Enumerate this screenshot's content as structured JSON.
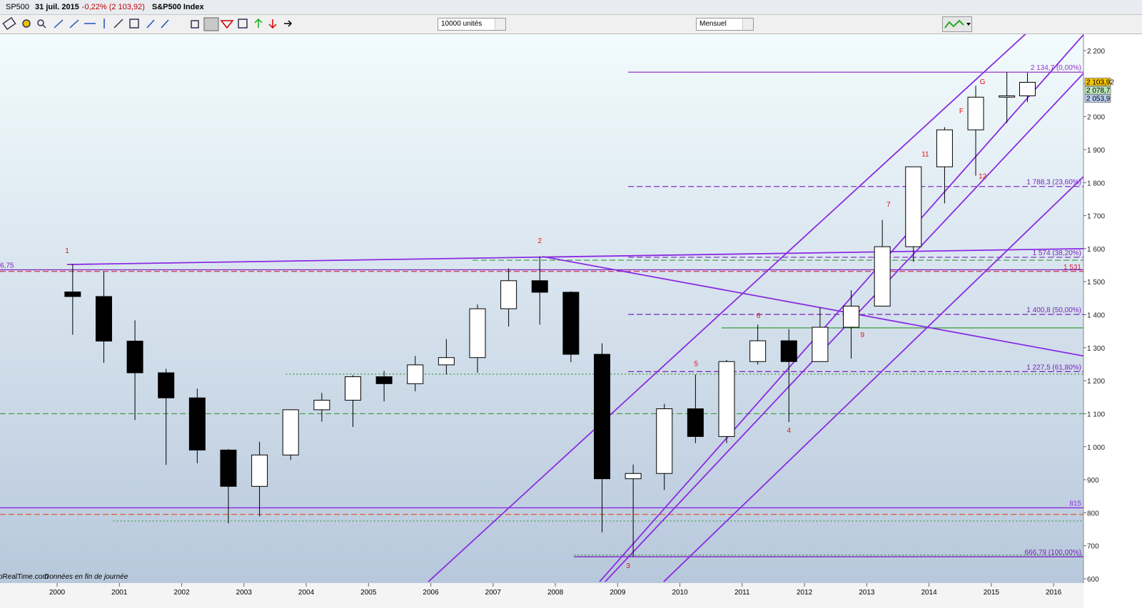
{
  "header": {
    "symbol": "SP500",
    "date": "31 juil. 2015",
    "change": "-0,22% (2 103,92)",
    "name": "S&P500 Index"
  },
  "toolbar": {
    "quantity": "10000 unités",
    "period": "Mensuel"
  },
  "footer": {
    "source": "oRealTime.com",
    "note": "Données en fin de journée"
  },
  "chart_data": {
    "type": "candlestick",
    "xlim": [
      1999.083,
      2016.48
    ],
    "xticks": [
      2000,
      2001,
      2002,
      2003,
      2004,
      2005,
      2006,
      2007,
      2008,
      2009,
      2010,
      2011,
      2012,
      2013,
      2014,
      2015,
      2016
    ],
    "ylim": [
      600,
      2200
    ],
    "yticks": [
      {
        "value": 600,
        "label": "600"
      },
      {
        "value": 700,
        "label": "700"
      },
      {
        "value": 800,
        "label": "800"
      },
      {
        "value": 900,
        "label": "900"
      },
      {
        "value": 1000,
        "label": "1 000"
      },
      {
        "value": 1100,
        "label": "1 100"
      },
      {
        "value": 1200,
        "label": "1 200"
      },
      {
        "value": 1300,
        "label": "1 300"
      },
      {
        "value": 1400,
        "label": "1 400"
      },
      {
        "value": 1500,
        "label": "1 500"
      },
      {
        "value": 1600,
        "label": "1 600"
      },
      {
        "value": 1700,
        "label": "1 700"
      },
      {
        "value": 1800,
        "label": "1 800"
      },
      {
        "value": 1900,
        "label": "1 900"
      },
      {
        "value": 2000,
        "label": "2 000"
      },
      {
        "value": 2100,
        "label": "2 100"
      },
      {
        "value": 2200,
        "label": "2 200"
      }
    ],
    "candles": {
      "x": [
        2000.25,
        2000.75,
        2001.25,
        2001.75,
        2002.25,
        2002.75,
        2003.25,
        2003.75,
        2004.25,
        2004.75,
        2005.25,
        2005.75,
        2006.25,
        2006.75,
        2007.25,
        2007.75,
        2008.25,
        2008.75,
        2009.25,
        2009.75,
        2010.25,
        2010.75,
        2011.25,
        2011.75,
        2012.25,
        2012.75,
        2013.25,
        2013.75,
        2014.25,
        2014.75,
        2015.25,
        2015.58
      ],
      "open": [
        1469,
        1455,
        1320,
        1224,
        1148,
        990,
        880,
        975,
        1112,
        1141,
        1212,
        1191,
        1248,
        1270,
        1418,
        1503,
        1468,
        1280,
        903,
        919,
        1115,
        1031,
        1258,
        1321,
        1258,
        1362,
        1426,
        1606,
        1848,
        1960,
        2059,
        2063
      ],
      "high": [
        1553,
        1530,
        1383,
        1236,
        1176,
        993,
        1015,
        1112,
        1163,
        1217,
        1230,
        1275,
        1326,
        1431,
        1540,
        1576,
        1471,
        1313,
        946,
        1130,
        1219,
        1263,
        1370,
        1356,
        1422,
        1474,
        1687,
        1849,
        1968,
        2093,
        2135,
        2133
      ],
      "low": [
        1339,
        1254,
        1081,
        945,
        950,
        768,
        789,
        960,
        1076,
        1060,
        1137,
        1168,
        1219,
        1224,
        1364,
        1370,
        1256,
        741,
        667,
        869,
        1011,
        1011,
        1249,
        1075,
        1258,
        1267,
        1426,
        1560,
        1737,
        1821,
        1981,
        2044
      ],
      "close": [
        1455,
        1320,
        1224,
        1148,
        990,
        880,
        975,
        1112,
        1141,
        1212,
        1191,
        1248,
        1270,
        1418,
        1503,
        1468,
        1280,
        903,
        919,
        1115,
        1031,
        1258,
        1321,
        1258,
        1362,
        1426,
        1606,
        1848,
        1960,
        2059,
        2063,
        2104
      ]
    },
    "levels": [
      {
        "value": 2134.7,
        "label": "2 134,7 (0,00%)",
        "color": "#9933cc",
        "style": "solid",
        "x_start": 2009.17
      },
      {
        "value": 1788.3,
        "label": "1 788,3 (23,60%)",
        "color": "#7a22bb",
        "style": "dashed",
        "x_start": 2009.17
      },
      {
        "value": 1574,
        "label": "1 574 (38,20%)",
        "color": "#7a22bb",
        "style": "dashed",
        "x_start": 2009.17
      },
      {
        "value": 1565,
        "color": "#3a9a3a",
        "style": "dashed",
        "x_start": 2006.67
      },
      {
        "value": 1531,
        "label": "1 531",
        "color": "#d02040",
        "style": "dashed",
        "x_start": 1999.083
      },
      {
        "value": 1536,
        "label": "6,75",
        "color": "#7a22bb",
        "style": "solid",
        "x_start": 1999.083
      },
      {
        "value": 1400.8,
        "label": "1 400,8 (50,00%)",
        "color": "#7a22bb",
        "style": "dashed",
        "x_start": 2009.17
      },
      {
        "value": 1360,
        "color": "#3a9a3a",
        "style": "solid",
        "x_start": 2010.67
      },
      {
        "value": 1227.5,
        "label": "1 227,5 (61,80%)",
        "color": "#7a22bb",
        "style": "dashed",
        "x_start": 2009.17
      },
      {
        "value": 1220,
        "color": "#3a9a3a",
        "style": "dotted",
        "x_start": 2003.67
      },
      {
        "value": 1100,
        "color": "#3a9a3a",
        "style": "dashed",
        "x_start": 1999.083
      },
      {
        "value": 815,
        "label": "815",
        "color": "#8a2be2",
        "style": "solid",
        "x_start": 1999.083
      },
      {
        "value": 795,
        "color": "#e05020",
        "style": "dashed",
        "x_start": 1999.083
      },
      {
        "value": 775,
        "color": "#3a9a3a",
        "style": "dotted",
        "x_start": 2000.9
      },
      {
        "value": 672,
        "color": "#3a9a3a",
        "style": "dotted",
        "x_start": 2008.3
      },
      {
        "value": 666.79,
        "label": "666,79 (100,00%)",
        "color": "#7a22bb",
        "style": "solid",
        "x_start": 2008.3
      }
    ],
    "trendlines": [
      {
        "x": [
          2000.16,
          2016.48
        ],
        "y": [
          1552,
          1600
        ]
      },
      {
        "x": [
          2007.8,
          2016.48
        ],
        "y": [
          1576,
          1275
        ]
      },
      {
        "x": [
          2005.96,
          2015.56
        ],
        "y": [
          591,
          2252
        ]
      },
      {
        "x": [
          2008.71,
          2016.48
        ],
        "y": [
          591,
          2248
        ]
      },
      {
        "x": [
          2009.74,
          2016.48
        ],
        "y": [
          591,
          1818
        ]
      },
      {
        "x": [
          2008.8,
          2016.48
        ],
        "y": [
          591,
          2131
        ]
      }
    ],
    "annotations": [
      {
        "label": "1",
        "x": 2000.16,
        "y": 1587
      },
      {
        "label": "2",
        "x": 2007.75,
        "y": 1617
      },
      {
        "label": "3",
        "x": 2009.17,
        "y": 632
      },
      {
        "label": "4",
        "x": 2011.75,
        "y": 1043
      },
      {
        "label": "5",
        "x": 2010.26,
        "y": 1244
      },
      {
        "label": "6",
        "x": 2011.26,
        "y": 1390
      },
      {
        "label": "7",
        "x": 2013.35,
        "y": 1727
      },
      {
        "label": "9",
        "x": 2012.93,
        "y": 1332
      },
      {
        "label": "11",
        "x": 2013.94,
        "y": 1879
      },
      {
        "label": "12",
        "x": 2014.86,
        "y": 1812
      },
      {
        "label": "F",
        "x": 2014.52,
        "y": 2010
      },
      {
        "label": "G",
        "x": 2014.86,
        "y": 2099
      }
    ],
    "price_tags": [
      {
        "value": 2103.92,
        "label": "2 103,92",
        "color": "#f5c400"
      },
      {
        "value": 2078.7,
        "label": "2 078,7",
        "color": "#b8e6b8"
      },
      {
        "value": 2053.9,
        "label": "2 053,9",
        "color": "#b8cff0"
      }
    ]
  }
}
